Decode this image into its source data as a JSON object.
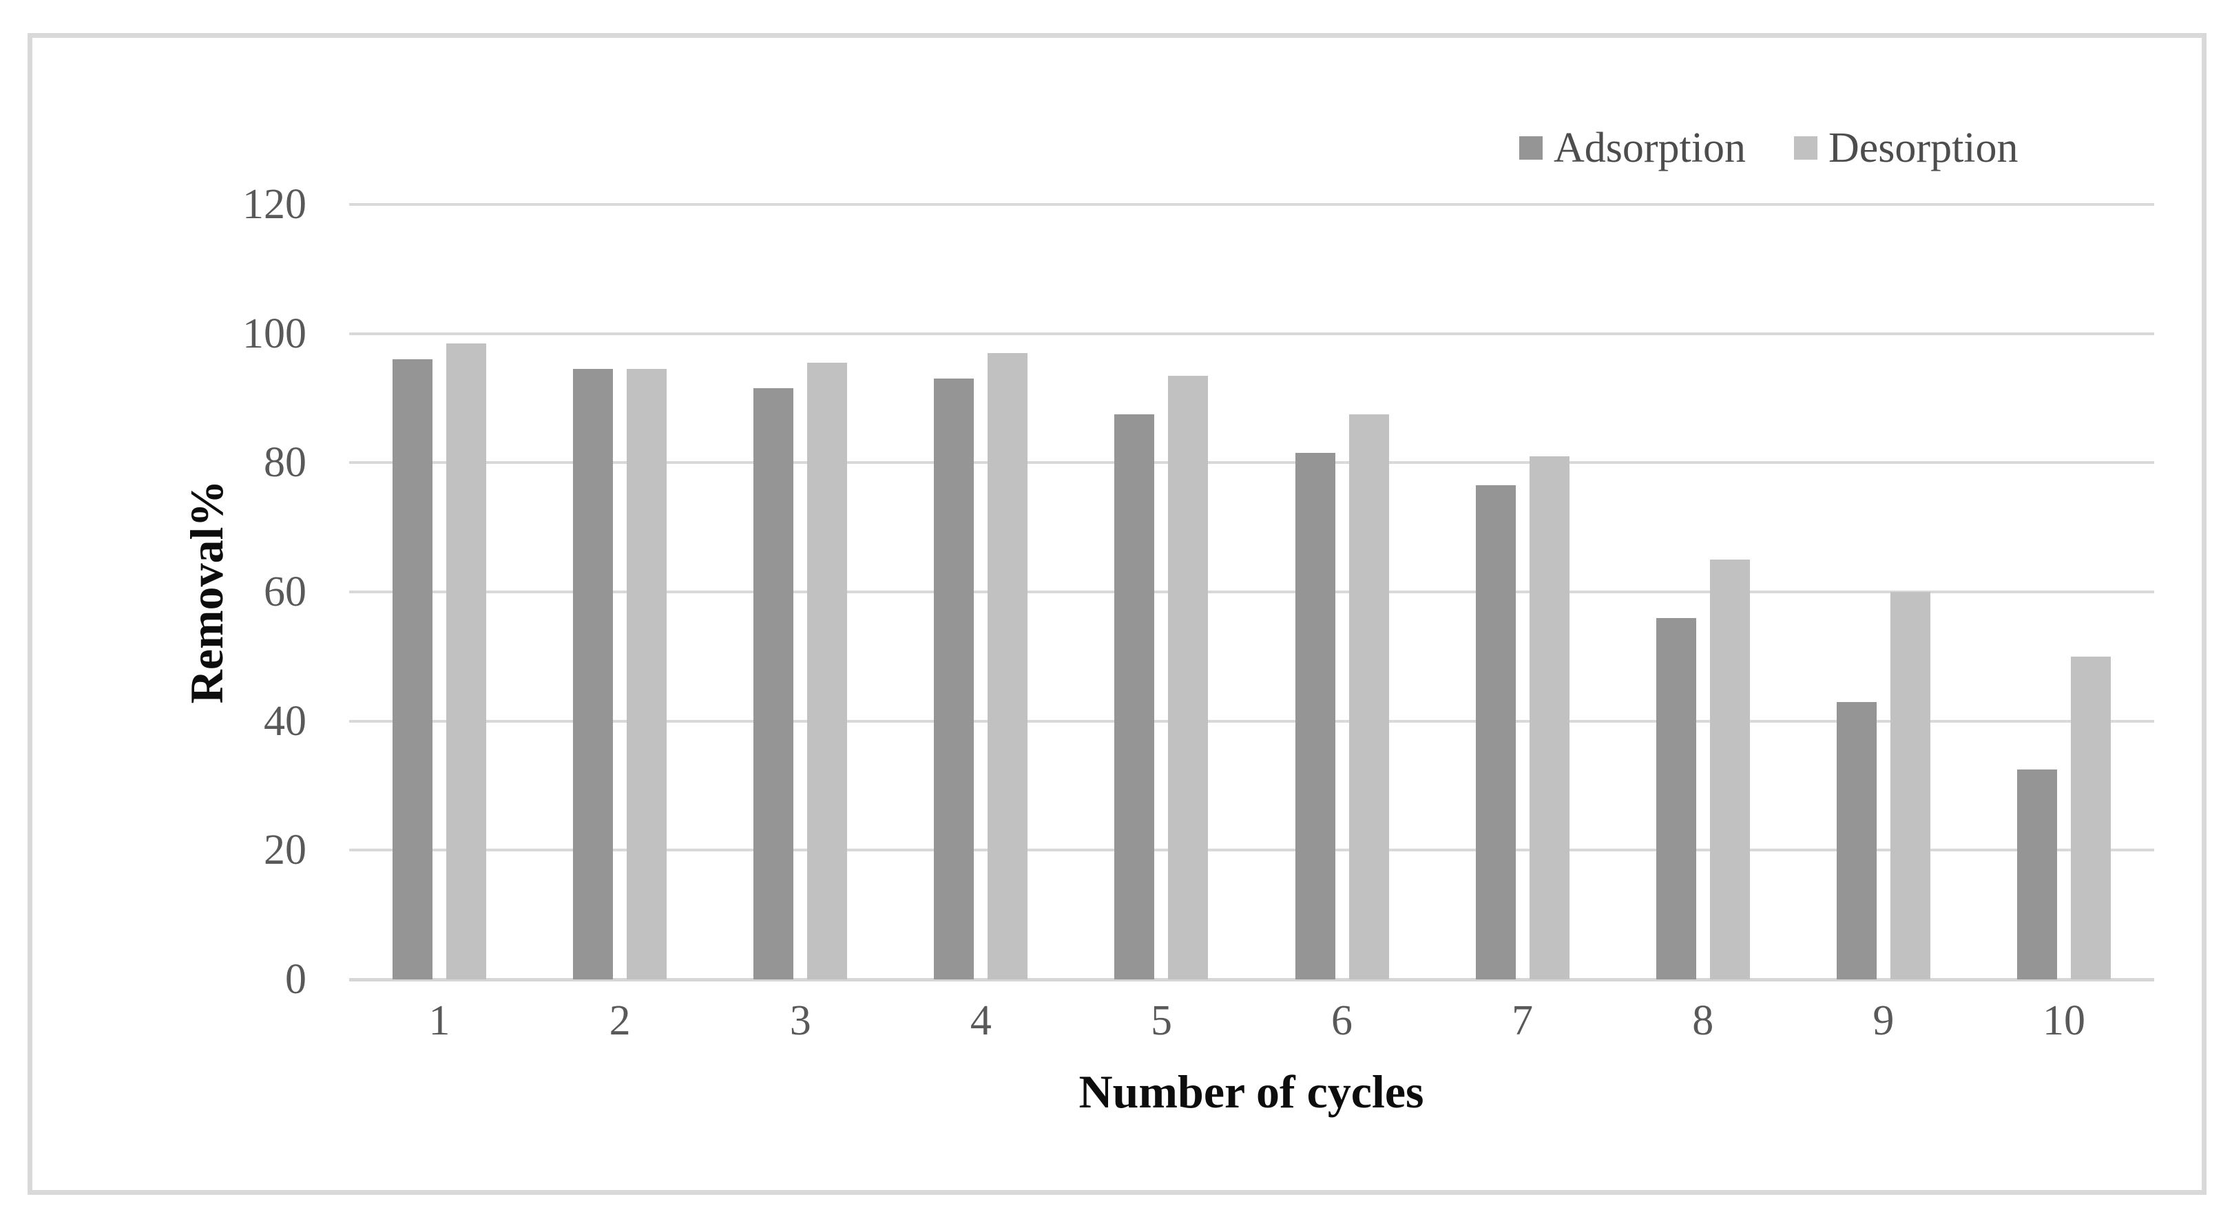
{
  "figure": {
    "frame_border_color": "#d9d9d9",
    "background_color": "#ffffff"
  },
  "chart_data": {
    "type": "bar",
    "title": "",
    "xlabel": "Number of cycles",
    "ylabel": "Removal%",
    "categories": [
      "1",
      "2",
      "3",
      "4",
      "5",
      "6",
      "7",
      "8",
      "9",
      "10"
    ],
    "series": [
      {
        "name": "Adsorption",
        "color": "#959595",
        "values": [
          96,
          94.5,
          91.5,
          93,
          87.5,
          81.5,
          76.5,
          56,
          43,
          32.5
        ]
      },
      {
        "name": "Desorption",
        "color": "#c1c1c1",
        "values": [
          98.5,
          94.5,
          95.5,
          97,
          93.5,
          87.5,
          81,
          65,
          60,
          50
        ]
      }
    ],
    "ylim": [
      0,
      120
    ],
    "yticks": [
      0,
      20,
      40,
      60,
      80,
      100,
      120
    ],
    "grid": true,
    "gridline_color": "#d9d9d9",
    "axis_line_color": "#d6d6d6",
    "tick_label_color": "#595959",
    "legend_position": "top-right",
    "legend_text_color": "#4d4d4d"
  }
}
